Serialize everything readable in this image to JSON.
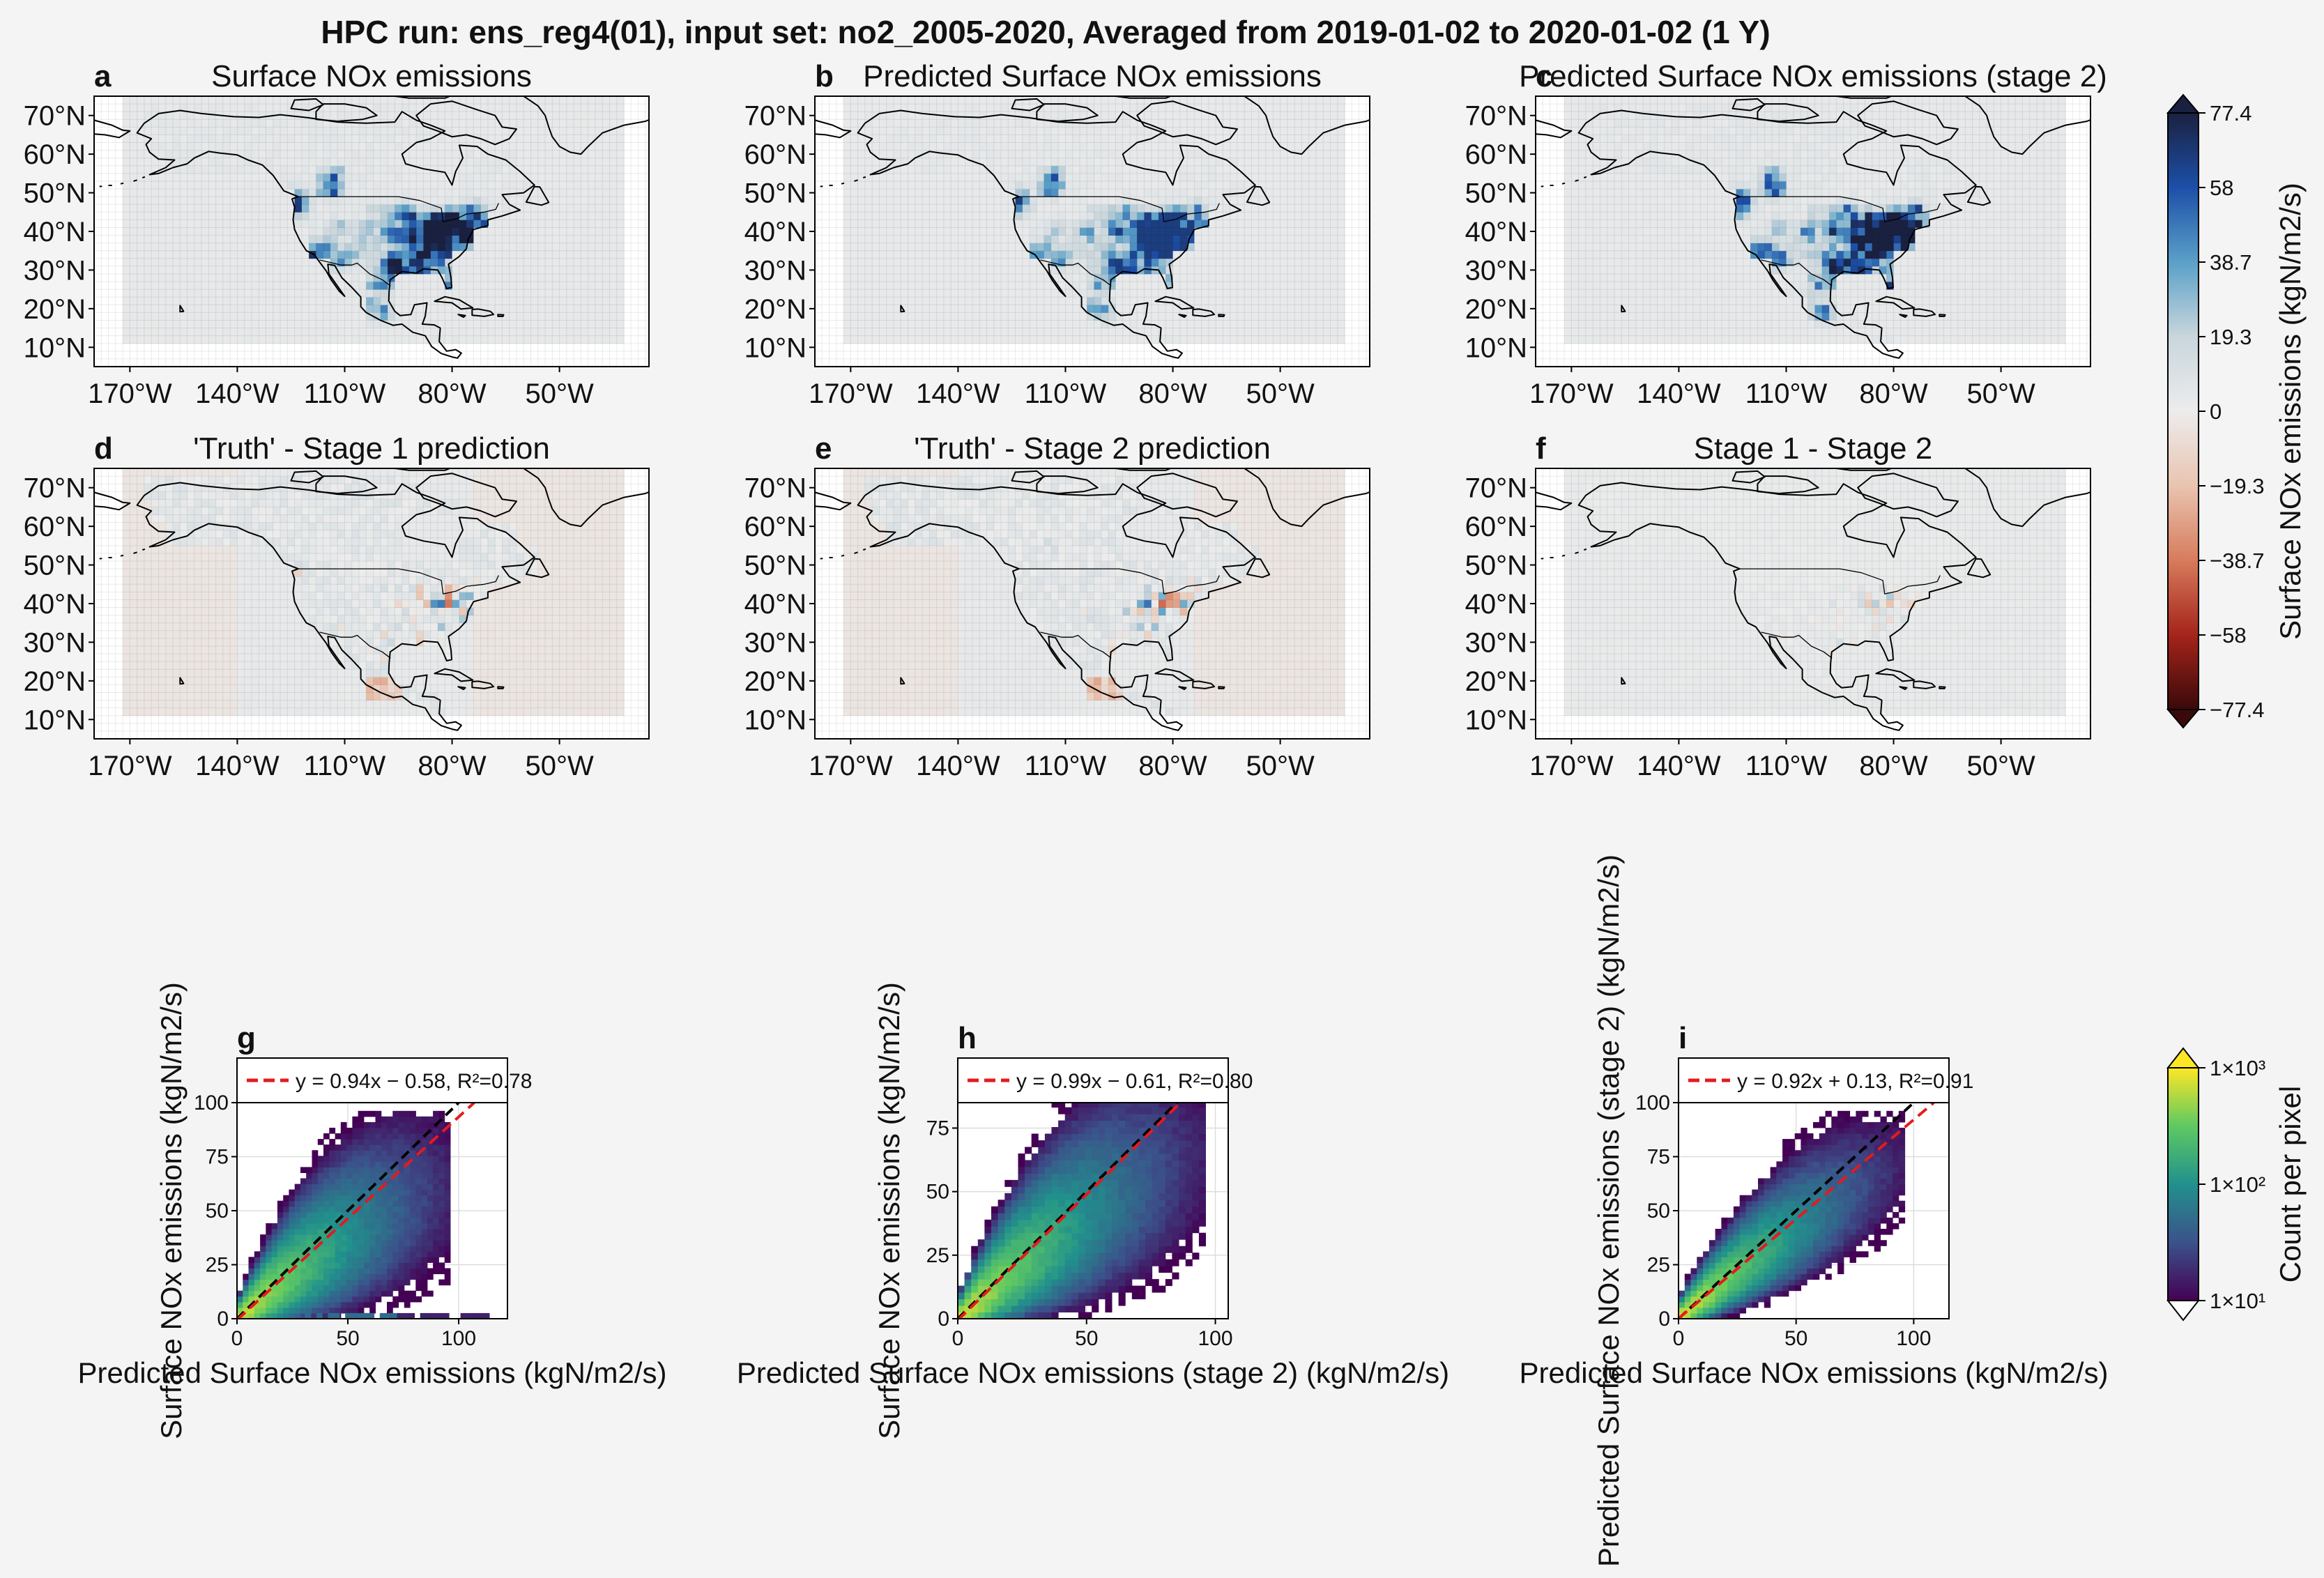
{
  "suptitle": "HPC run: ens_reg4(01), input set: no2_2005-2020, Averaged from 2019-01-02 to 2020-01-02 (1 Y)",
  "map_axes": {
    "lat_ticks": [
      "70°N",
      "60°N",
      "50°N",
      "40°N",
      "30°N",
      "20°N",
      "10°N"
    ],
    "lat_values": [
      70,
      60,
      50,
      40,
      30,
      20,
      10
    ],
    "lon_ticks": [
      "170°W",
      "140°W",
      "110°W",
      "80°W",
      "50°W"
    ],
    "lon_values": [
      -170,
      -140,
      -110,
      -80,
      -50
    ],
    "lon_range": [
      -180,
      -25
    ],
    "lat_range": [
      5,
      75
    ]
  },
  "map_panels": [
    {
      "letter": "a",
      "title": "Surface NOx emissions",
      "kind": "emis",
      "seed": 11
    },
    {
      "letter": "b",
      "title": "Predicted Surface NOx emissions",
      "kind": "emis",
      "seed": 23
    },
    {
      "letter": "c",
      "title": "Predicted Surface NOx emissions (stage 2)",
      "kind": "emis",
      "seed": 37
    },
    {
      "letter": "d",
      "title": "'Truth' - Stage 1 prediction",
      "kind": "diff",
      "seed": 41
    },
    {
      "letter": "e",
      "title": "'Truth' - Stage 2 prediction",
      "kind": "diff",
      "seed": 53
    },
    {
      "letter": "f",
      "title": "Stage 1 - Stage 2",
      "kind": "diff_small",
      "seed": 67
    }
  ],
  "colorbar_emissions": {
    "label": "Surface NOx emissions (kgN/m2/s)",
    "ticks": [
      "77.4",
      "58",
      "38.7",
      "19.3",
      "0",
      "−19.3",
      "−38.7",
      "−58",
      "−77.4"
    ],
    "vmin": -77.4,
    "vmax": 77.4,
    "colors": [
      "#1a2140",
      "#1d4fa8",
      "#5aa0c8",
      "#c9d6dc",
      "#ececec",
      "#e9c4b0",
      "#d77b5c",
      "#a5241b",
      "#3a0909"
    ]
  },
  "colorbar_count": {
    "label": "Count per pixel",
    "ticks": [
      "1×10³",
      "1×10²",
      "1×10¹"
    ],
    "scale": "log",
    "range": [
      10,
      1000
    ],
    "colors": [
      "#440154",
      "#3b528b",
      "#21918c",
      "#5ec962",
      "#fde725"
    ]
  },
  "chart_data": [
    {
      "type": "heatmap",
      "panel": "g",
      "xlabel": "Predicted Surface NOx emissions (kgN/m2/s)",
      "ylabel": "Surface NOx emissions (kgN/m2/s)",
      "xlim": [
        0,
        122
      ],
      "ylim": [
        0,
        100
      ],
      "xticks": [
        0,
        50,
        100
      ],
      "yticks": [
        0,
        25,
        50,
        75,
        100
      ],
      "legend": "y = 0.94x − 0.58,  R²=0.78",
      "fit": {
        "slope": 0.94,
        "intercept": -0.58,
        "r2": 0.78
      },
      "seed": 5
    },
    {
      "type": "heatmap",
      "panel": "h",
      "xlabel": "Predicted Surface NOx emissions (stage 2) (kgN/m2/s)",
      "ylabel": "Surface NOx emissions (kgN/m2/s)",
      "xlim": [
        0,
        105
      ],
      "ylim": [
        0,
        85
      ],
      "xticks": [
        0,
        50,
        100
      ],
      "yticks": [
        0,
        25,
        50,
        75
      ],
      "legend": "y = 0.99x − 0.61,  R²=0.80",
      "fit": {
        "slope": 0.99,
        "intercept": -0.61,
        "r2": 0.8
      },
      "seed": 9
    },
    {
      "type": "heatmap",
      "panel": "i",
      "xlabel": "Predicted Surface NOx emissions (kgN/m2/s)",
      "ylabel": "Predicted Surface NOx emissions (stage 2) (kgN/m2/s)",
      "xlim": [
        0,
        115
      ],
      "ylim": [
        0,
        100
      ],
      "xticks": [
        0,
        50,
        100
      ],
      "yticks": [
        0,
        25,
        50,
        75,
        100
      ],
      "legend": "y = 0.92x + 0.13,  R²=0.91",
      "fit": {
        "slope": 0.92,
        "intercept": 0.13,
        "r2": 0.91
      },
      "seed": 13
    }
  ]
}
